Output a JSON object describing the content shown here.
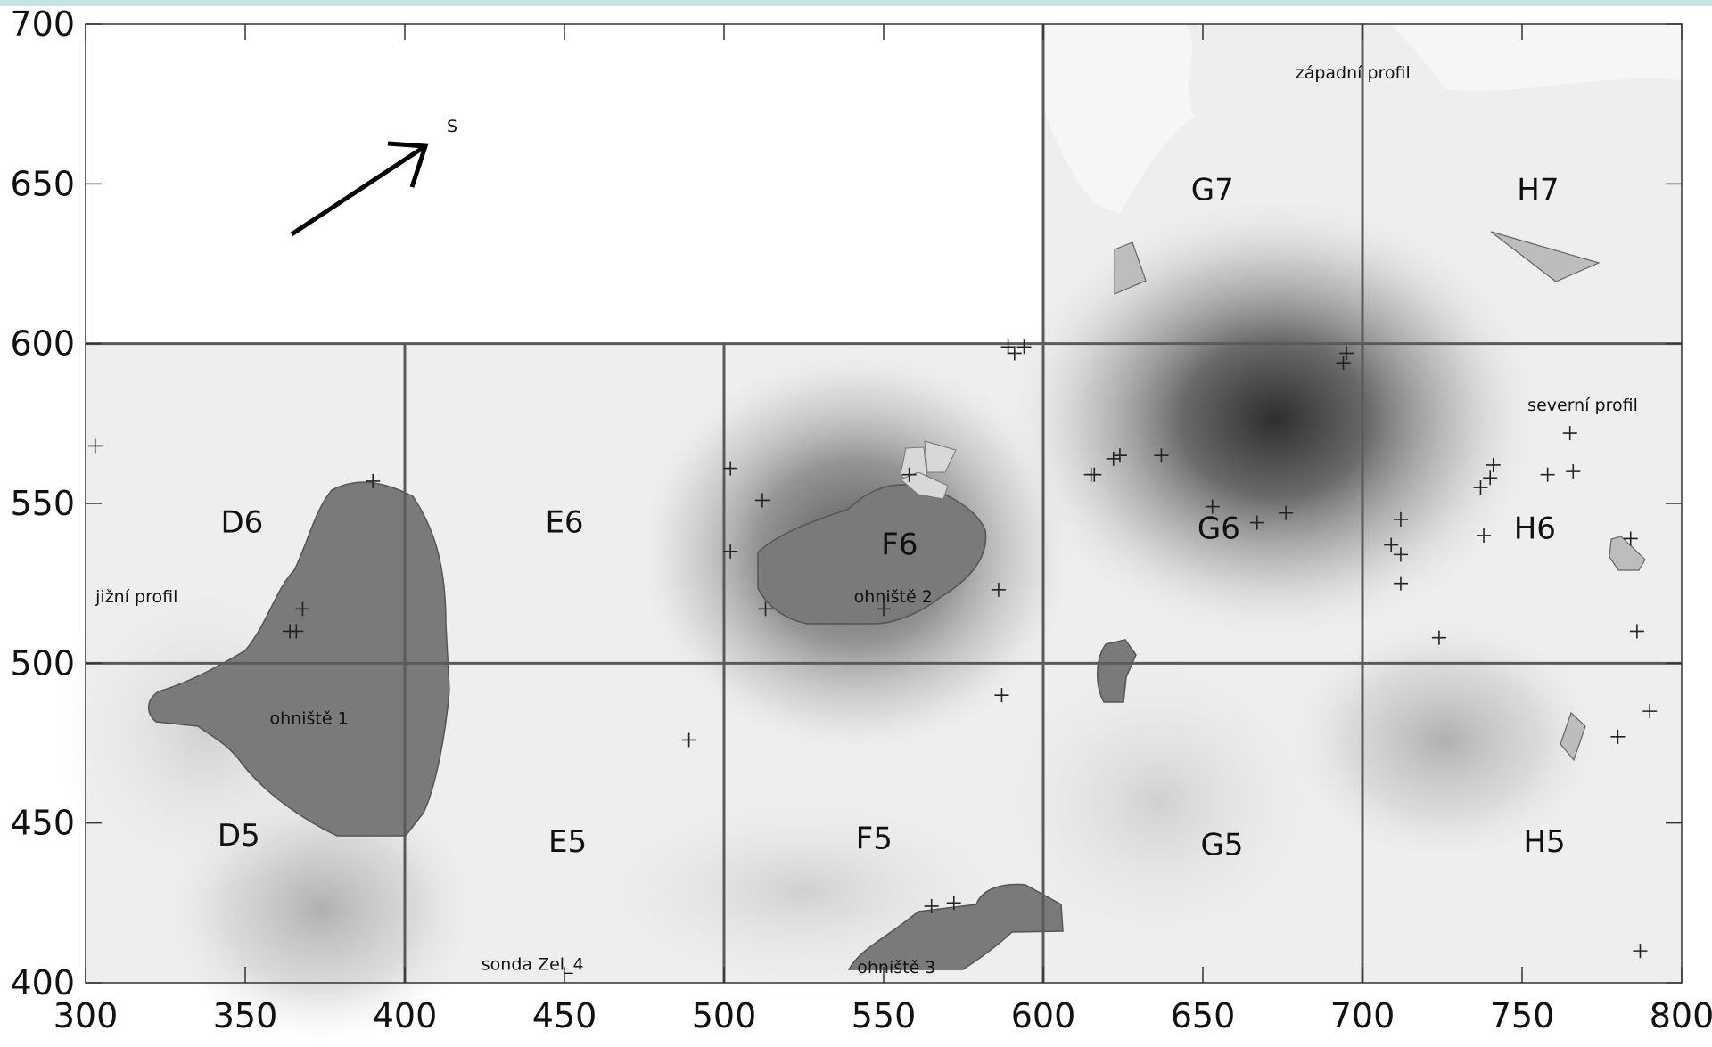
{
  "map": {
    "x_ticks": [
      300,
      350,
      400,
      450,
      500,
      550,
      600,
      650,
      700,
      750,
      800
    ],
    "y_ticks": [
      700,
      650,
      600,
      550,
      500,
      450,
      400
    ],
    "xlim": [
      300,
      800
    ],
    "ylim": [
      400,
      700
    ],
    "north_label": "S",
    "grid_cells": [
      {
        "label": "G7",
        "x": 653,
        "y": 645
      },
      {
        "label": "H7",
        "x": 755,
        "y": 645
      },
      {
        "label": "D6",
        "x": 349,
        "y": 541
      },
      {
        "label": "E6",
        "x": 450,
        "y": 541
      },
      {
        "label": "F6",
        "x": 555,
        "y": 534
      },
      {
        "label": "G6",
        "x": 655,
        "y": 539
      },
      {
        "label": "H6",
        "x": 754,
        "y": 539
      },
      {
        "label": "D5",
        "x": 348,
        "y": 443
      },
      {
        "label": "E5",
        "x": 451,
        "y": 441
      },
      {
        "label": "F5",
        "x": 547,
        "y": 442
      },
      {
        "label": "G5",
        "x": 656,
        "y": 440
      },
      {
        "label": "H5",
        "x": 757,
        "y": 441
      }
    ],
    "annotations": [
      {
        "text": "západní profil",
        "x": 697,
        "y": 683
      },
      {
        "text": "severní profil",
        "x": 769,
        "y": 579
      },
      {
        "text": "jižní profil",
        "x": 316,
        "y": 519
      },
      {
        "text": "ohniště 2",
        "x": 553,
        "y": 519
      },
      {
        "text": "ohniště 1",
        "x": 370,
        "y": 481
      },
      {
        "text": "sonda Zel_4",
        "x": 440,
        "y": 404
      },
      {
        "text": "ohniště 3",
        "x": 554,
        "y": 403
      }
    ],
    "crosses": [
      [
        303,
        568
      ],
      [
        390,
        557
      ],
      [
        368,
        517
      ],
      [
        364,
        510
      ],
      [
        366,
        510
      ],
      [
        489,
        476
      ],
      [
        502,
        561
      ],
      [
        502,
        535
      ],
      [
        512,
        551
      ],
      [
        513,
        517
      ],
      [
        550,
        517
      ],
      [
        558,
        559
      ],
      [
        586,
        523
      ],
      [
        587,
        490
      ],
      [
        589,
        599
      ],
      [
        591,
        597
      ],
      [
        594,
        599
      ],
      [
        615,
        559
      ],
      [
        616,
        559
      ],
      [
        622,
        564
      ],
      [
        624,
        565
      ],
      [
        637,
        565
      ],
      [
        653,
        549
      ],
      [
        667,
        544
      ],
      [
        676,
        547
      ],
      [
        694,
        594
      ],
      [
        695,
        597
      ],
      [
        709,
        537
      ],
      [
        712,
        545
      ],
      [
        712,
        534
      ],
      [
        712,
        525
      ],
      [
        724,
        508
      ],
      [
        737,
        555
      ],
      [
        738,
        540
      ],
      [
        740,
        558
      ],
      [
        741,
        562
      ],
      [
        758,
        559
      ],
      [
        765,
        572
      ],
      [
        766,
        560
      ],
      [
        780,
        477
      ],
      [
        784,
        539
      ],
      [
        786,
        510
      ],
      [
        790,
        485
      ],
      [
        787,
        410
      ],
      [
        565,
        424
      ],
      [
        572,
        425
      ]
    ]
  }
}
